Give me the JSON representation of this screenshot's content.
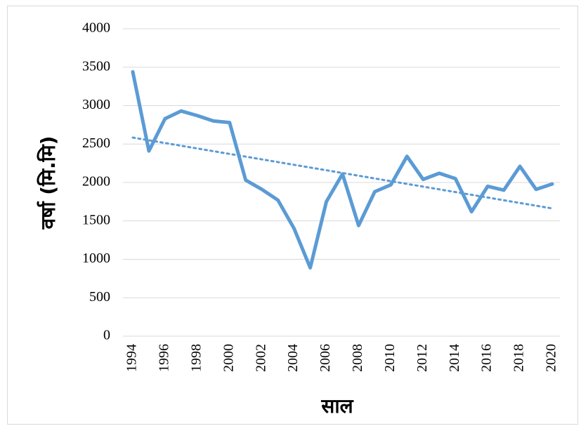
{
  "chart_data": {
    "type": "line",
    "x": [
      1994,
      1995,
      1996,
      1997,
      1998,
      1999,
      2000,
      2001,
      2002,
      2003,
      2004,
      2005,
      2006,
      2007,
      2008,
      2009,
      2010,
      2011,
      2012,
      2013,
      2014,
      2015,
      2016,
      2017,
      2018,
      2019,
      2020
    ],
    "series": [
      {
        "name": "वर्षा",
        "color": "#5b9bd5",
        "values": [
          3440,
          2410,
          2830,
          2930,
          2870,
          2800,
          2780,
          2030,
          1910,
          1770,
          1400,
          890,
          1750,
          2110,
          1440,
          1880,
          1970,
          2340,
          2040,
          2120,
          2050,
          1620,
          1950,
          1900,
          2210,
          1910,
          1980
        ]
      }
    ],
    "trendline": "linear",
    "xlim": [
      1994,
      2020
    ],
    "xticks": [
      1994,
      1996,
      1998,
      2000,
      2002,
      2004,
      2006,
      2008,
      2010,
      2012,
      2014,
      2016,
      2018,
      2020
    ],
    "ylim": [
      0,
      4000
    ],
    "yticks": [
      0,
      500,
      1000,
      1500,
      2000,
      2500,
      3000,
      3500,
      4000
    ],
    "grid": true,
    "x_label": "साल",
    "y_label": "वर्षा (मि.मि)"
  }
}
